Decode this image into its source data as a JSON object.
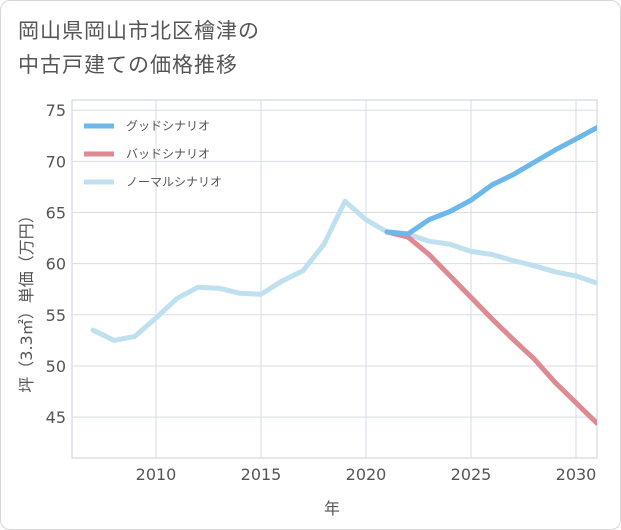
{
  "chart_data": {
    "type": "line",
    "title": "岡山県岡山市北区檜津の中古戸建ての価格推移",
    "title_lines": [
      "岡山県岡山市北区檜津の",
      "中古戸建ての価格推移"
    ],
    "xlabel": "年",
    "ylabel": "坪（3.3㎡）単価（万円）",
    "xlim": [
      2006,
      2031
    ],
    "ylim": [
      41,
      76
    ],
    "xticks": [
      2010,
      2015,
      2020,
      2025,
      2030
    ],
    "yticks": [
      45,
      50,
      55,
      60,
      65,
      70,
      75
    ],
    "grid": true,
    "legend_position": "top-left",
    "series": [
      {
        "name": "グッドシナリオ",
        "color": "#6cb8ea",
        "x": [
          2021,
          2022,
          2023,
          2024,
          2025,
          2026,
          2027,
          2028,
          2029,
          2030,
          2031
        ],
        "y": [
          63.1,
          62.9,
          64.3,
          65.1,
          66.2,
          67.7,
          68.7,
          69.9,
          71.1,
          72.2,
          73.3
        ]
      },
      {
        "name": "バッドシナリオ",
        "color": "#de8a92",
        "x": [
          2021,
          2022,
          2023,
          2024,
          2025,
          2026,
          2027,
          2028,
          2029,
          2030,
          2031
        ],
        "y": [
          63.1,
          62.6,
          60.9,
          58.8,
          56.7,
          54.6,
          52.6,
          50.7,
          48.4,
          46.4,
          44.4
        ]
      },
      {
        "name": "ノーマルシナリオ",
        "color": "#bfe0ef",
        "x": [
          2007,
          2008,
          2009,
          2010,
          2011,
          2012,
          2013,
          2014,
          2015,
          2016,
          2017,
          2018,
          2019,
          2020,
          2021,
          2022,
          2023,
          2024,
          2025,
          2026,
          2027,
          2028,
          2029,
          2030,
          2031
        ],
        "y": [
          53.5,
          52.5,
          52.9,
          54.7,
          56.6,
          57.7,
          57.6,
          57.1,
          57.0,
          58.3,
          59.3,
          61.9,
          66.1,
          64.3,
          63.1,
          62.9,
          62.2,
          61.9,
          61.2,
          60.9,
          60.3,
          59.8,
          59.2,
          58.8,
          58.1
        ]
      }
    ]
  }
}
